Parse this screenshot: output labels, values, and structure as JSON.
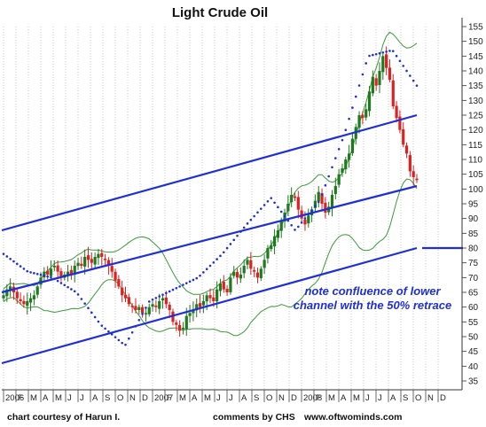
{
  "chart_data": {
    "type": "candlestick",
    "title": "Light Crude Oil",
    "ylim": [
      32,
      158
    ],
    "y_ticks": [
      35,
      40,
      45,
      50,
      55,
      60,
      65,
      70,
      75,
      80,
      85,
      90,
      95,
      100,
      105,
      110,
      115,
      120,
      125,
      130,
      135,
      140,
      145,
      150,
      155
    ],
    "x_tick_labels": [
      "2006",
      "F",
      "M",
      "A",
      "M",
      "J",
      "J",
      "A",
      "S",
      "O",
      "N",
      "D",
      "2007",
      "F",
      "M",
      "A",
      "M",
      "J",
      "J",
      "A",
      "S",
      "O",
      "N",
      "D",
      "2008",
      "F",
      "M",
      "A",
      "M",
      "J",
      "J",
      "A",
      "S",
      "O",
      "N",
      "D"
    ],
    "weekly_close_approx": [
      64,
      66,
      67,
      65,
      63,
      62,
      61,
      62,
      63,
      64,
      67,
      70,
      72,
      71,
      73,
      74,
      72,
      70,
      71,
      72,
      71,
      74,
      75,
      74,
      77,
      76,
      75,
      77,
      78,
      77,
      76,
      74,
      72,
      69,
      67,
      64,
      63,
      61,
      60,
      59,
      60,
      58,
      58,
      60,
      61,
      60,
      62,
      63,
      61,
      59,
      55,
      54,
      52,
      53,
      57,
      58,
      59,
      61,
      60,
      62,
      64,
      63,
      62,
      66,
      68,
      66,
      65,
      70,
      72,
      70,
      71,
      74,
      76,
      73,
      72,
      70,
      73,
      76,
      80,
      81,
      84,
      86,
      89,
      92,
      95,
      98,
      97,
      93,
      90,
      88,
      91,
      93,
      96,
      99,
      95,
      92,
      94,
      98,
      101,
      105,
      107,
      110,
      112,
      117,
      121,
      125,
      124,
      127,
      133,
      138,
      135,
      140,
      145,
      141,
      137,
      128,
      124,
      120,
      115,
      112,
      106,
      104,
      103
    ],
    "parabolic_sar_levels_approx": [
      78,
      72,
      70,
      65,
      54,
      47,
      62,
      66,
      70,
      78,
      88,
      97,
      86,
      96,
      118,
      145,
      147,
      135
    ],
    "channel_lines": [
      {
        "name": "upper",
        "color": "#1f2fd6",
        "from": [
          0,
          86
        ],
        "to": [
          1,
          125
        ]
      },
      {
        "name": "middle",
        "color": "#1f2fd6",
        "from": [
          0,
          65
        ],
        "to": [
          1,
          101
        ]
      },
      {
        "name": "lower",
        "color": "#1f2fd6",
        "from": [
          0,
          41
        ],
        "to": [
          1,
          80
        ]
      }
    ],
    "retrace_marker": {
      "level": 80,
      "color": "#1f2fd6"
    },
    "bollinger_color": "#3a9a3a",
    "up_candle_color": "#1e7a1e",
    "down_candle_color": "#e02020",
    "sar_color": "#1f2fd6",
    "grid": "vertical dotted",
    "annotation": [
      "note confluence of lower",
      "channel with the 50% retrace"
    ]
  },
  "footer": {
    "left": "chart courtesy of Harun I.",
    "middle": "comments by CHS",
    "right": "www.oftwominds.com"
  }
}
